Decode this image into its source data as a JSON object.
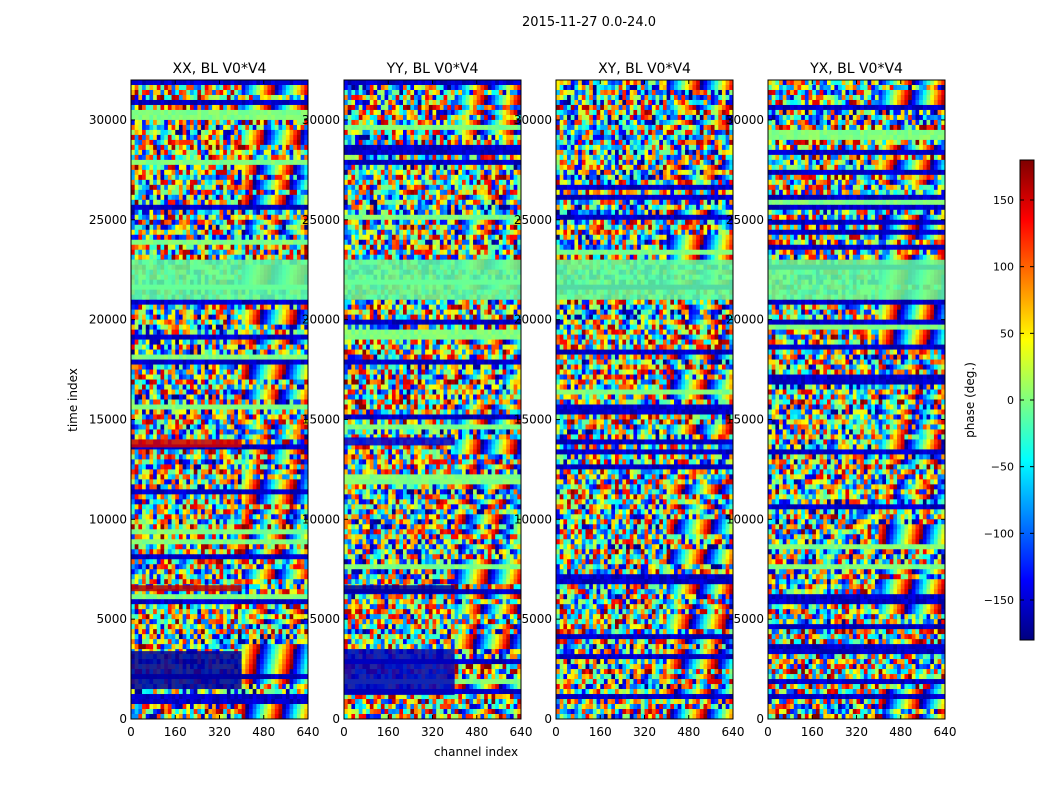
{
  "figure": {
    "suptitle": "2015-11-27 0.0-24.0",
    "xlabel": "channel index",
    "ylabel": "time index"
  },
  "chart_data": [
    {
      "type": "heatmap",
      "title": "XX, BL V0*V4",
      "x_range": [
        0,
        640
      ],
      "y_range": [
        0,
        32000
      ],
      "x_ticks": [
        0,
        160,
        320,
        480,
        640
      ],
      "y_ticks": [
        0,
        5000,
        10000,
        15000,
        20000,
        25000,
        30000
      ],
      "value_range": [
        -180,
        180
      ],
      "bands": [
        {
          "y0": 13600,
          "y1": 14000,
          "x1": 400,
          "phase": 150
        },
        {
          "y0": 6400,
          "y1": 6700,
          "x1": 400,
          "phase": 160
        },
        {
          "y0": 1500,
          "y1": 3400,
          "x1": 400,
          "phase": -170
        },
        {
          "y0": 21000,
          "y1": 23000,
          "x1": 640,
          "phase": -10
        }
      ]
    },
    {
      "type": "heatmap",
      "title": "YY, BL V0*V4",
      "x_range": [
        0,
        640
      ],
      "y_range": [
        0,
        32000
      ],
      "x_ticks": [
        0,
        160,
        320,
        480,
        640
      ],
      "y_ticks": [
        0,
        5000,
        10000,
        15000,
        20000,
        25000,
        30000
      ],
      "value_range": [
        -180,
        180
      ],
      "bands": [
        {
          "y0": 13700,
          "y1": 14100,
          "x1": 400,
          "phase": -150
        },
        {
          "y0": 6300,
          "y1": 6700,
          "x1": 400,
          "phase": -170
        },
        {
          "y0": 1200,
          "y1": 3500,
          "x1": 400,
          "phase": -160
        },
        {
          "y0": 21000,
          "y1": 23000,
          "x1": 640,
          "phase": -10
        }
      ]
    },
    {
      "type": "heatmap",
      "title": "XY, BL V0*V4",
      "x_range": [
        0,
        640
      ],
      "y_range": [
        0,
        32000
      ],
      "x_ticks": [
        0,
        160,
        320,
        480,
        640
      ],
      "y_ticks": [
        0,
        5000,
        10000,
        15000,
        20000,
        25000,
        30000
      ],
      "value_range": [
        -180,
        180
      ],
      "bands": [
        {
          "y0": 21000,
          "y1": 23000,
          "x1": 640,
          "phase": -10
        }
      ]
    },
    {
      "type": "heatmap",
      "title": "YX, BL V0*V4",
      "x_range": [
        0,
        640
      ],
      "y_range": [
        0,
        32000
      ],
      "x_ticks": [
        0,
        160,
        320,
        480,
        640
      ],
      "y_ticks": [
        0,
        5000,
        10000,
        15000,
        20000,
        25000,
        30000
      ],
      "value_range": [
        -180,
        180
      ],
      "bands": [
        {
          "y0": 21000,
          "y1": 23000,
          "x1": 640,
          "phase": -10
        }
      ]
    }
  ],
  "colorbar": {
    "label": "phase (deg.)",
    "range": [
      -180,
      180
    ],
    "ticks": [
      150,
      100,
      50,
      0,
      -50,
      -100,
      -150
    ],
    "tick_labels": [
      "150",
      "100",
      "50",
      "0",
      "−50",
      "−100",
      "−150"
    ],
    "colormap": "jet"
  },
  "colors": {
    "jet_stops": [
      "#00007f",
      "#0000ff",
      "#007fff",
      "#00ffff",
      "#7fff7f",
      "#ffff00",
      "#ff7f00",
      "#ff0000",
      "#7f0000"
    ]
  }
}
